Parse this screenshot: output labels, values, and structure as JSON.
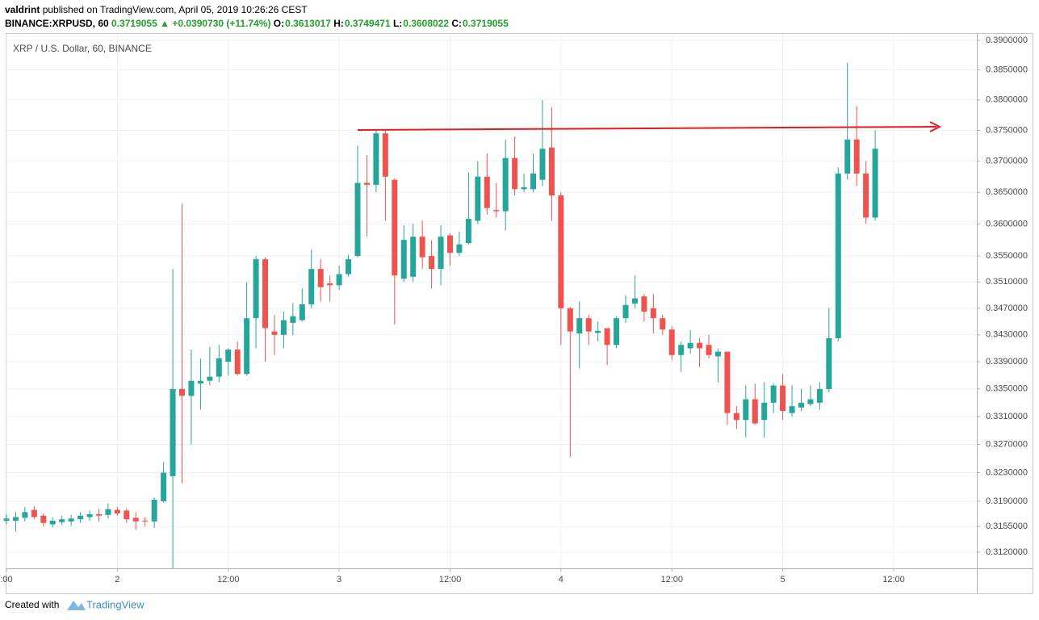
{
  "header": {
    "author": "valdrint",
    "published": "published on TradingView.com, April 05, 2019 10:26:26 CEST",
    "symbol": "BINANCE:XRPUSD, 60",
    "last": "0.3719055",
    "change": "▲ +0.0390730 (+11.74%)",
    "o_label": "O:",
    "o": "0.3613017",
    "h_label": "H:",
    "h": "0.3749471",
    "l_label": "L:",
    "l": "0.3608022",
    "c_label": "C:",
    "c": "0.3719055"
  },
  "footer": {
    "created": "Created with",
    "brand": "TradingView"
  },
  "chart_data": {
    "type": "candlestick",
    "title": "XRP / U.S. Dollar, 60, BINANCE",
    "log_scale": true,
    "grid": true,
    "up_color": "#26a69a",
    "down_color": "#ef5350",
    "x": [
      0,
      1,
      2,
      3,
      4,
      5,
      6,
      7,
      8,
      9,
      10,
      11,
      12,
      13,
      14,
      15,
      16,
      17,
      18,
      19,
      20,
      21,
      22,
      23,
      24,
      25,
      26,
      27,
      28,
      29,
      30,
      31,
      32,
      33,
      34,
      35,
      36,
      37,
      38,
      39,
      40,
      41,
      42,
      43,
      44,
      45,
      46,
      47,
      48,
      49,
      50,
      51,
      52,
      53,
      54,
      55,
      56,
      57,
      58,
      59,
      60,
      61,
      62,
      63,
      64,
      65,
      66,
      67,
      68,
      69,
      70,
      71,
      72,
      73,
      74,
      75,
      76,
      77,
      78,
      79,
      80,
      81,
      82,
      83,
      84,
      85,
      86,
      87,
      88,
      89,
      90,
      91,
      92,
      93,
      94
    ],
    "open": [
      0.3163,
      0.3163,
      0.3167,
      0.3178,
      0.317,
      0.3158,
      0.3161,
      0.3162,
      0.3165,
      0.3168,
      0.3172,
      0.3171,
      0.3178,
      0.3177,
      0.3167,
      0.3163,
      0.3162,
      0.319,
      0.3225,
      0.335,
      0.334,
      0.3358,
      0.3362,
      0.3368,
      0.339,
      0.3408,
      0.3372,
      0.3455,
      0.3545,
      0.3435,
      0.343,
      0.3448,
      0.3452,
      0.3476,
      0.353,
      0.3508,
      0.3505,
      0.3522,
      0.355,
      0.3665,
      0.3662,
      0.3745,
      0.367,
      0.3515,
      0.3518,
      0.358,
      0.355,
      0.353,
      0.3582,
      0.3555,
      0.357,
      0.3605,
      0.3675,
      0.3622,
      0.362,
      0.3705,
      0.3655,
      0.3655,
      0.367,
      0.3722,
      0.3645,
      0.347,
      0.3432,
      0.3455,
      0.3433,
      0.344,
      0.3415,
      0.3455,
      0.3477,
      0.3488,
      0.347,
      0.3455,
      0.3438,
      0.34,
      0.341,
      0.3418,
      0.3415,
      0.3398,
      0.3405,
      0.3315,
      0.3305,
      0.3335,
      0.3305,
      0.333,
      0.3355,
      0.3315,
      0.3323,
      0.3328,
      0.333,
      0.335,
      0.3425,
      0.368,
      0.3735,
      0.368,
      0.361
    ],
    "high": [
      0.3172,
      0.3175,
      0.3182,
      0.3183,
      0.3173,
      0.3168,
      0.317,
      0.3171,
      0.3175,
      0.3177,
      0.3179,
      0.3187,
      0.3182,
      0.318,
      0.3175,
      0.3168,
      0.3195,
      0.3245,
      0.353,
      0.3632,
      0.3408,
      0.3395,
      0.3412,
      0.3415,
      0.341,
      0.342,
      0.351,
      0.355,
      0.3548,
      0.346,
      0.3465,
      0.3478,
      0.35,
      0.356,
      0.3545,
      0.352,
      0.3535,
      0.3552,
      0.3725,
      0.371,
      0.375,
      0.375,
      0.3672,
      0.3598,
      0.36,
      0.3605,
      0.3575,
      0.3598,
      0.3585,
      0.3588,
      0.3682,
      0.37,
      0.3712,
      0.3665,
      0.3735,
      0.374,
      0.368,
      0.3712,
      0.38,
      0.3788,
      0.365,
      0.3472,
      0.348,
      0.346,
      0.345,
      0.344,
      0.3458,
      0.349,
      0.352,
      0.3492,
      0.3492,
      0.346,
      0.3443,
      0.342,
      0.3437,
      0.3425,
      0.343,
      0.341,
      0.3405,
      0.3325,
      0.3355,
      0.3358,
      0.336,
      0.3358,
      0.3372,
      0.3355,
      0.335,
      0.3355,
      0.336,
      0.347,
      0.369,
      0.3862,
      0.379,
      0.37,
      0.375
    ],
    "low": [
      0.3158,
      0.3148,
      0.3162,
      0.3165,
      0.3155,
      0.3154,
      0.3157,
      0.3156,
      0.316,
      0.3163,
      0.3162,
      0.3166,
      0.317,
      0.316,
      0.315,
      0.3155,
      0.3153,
      0.3188,
      0.3098,
      0.3215,
      0.327,
      0.332,
      0.3355,
      0.336,
      0.337,
      0.337,
      0.337,
      0.341,
      0.339,
      0.34,
      0.341,
      0.343,
      0.345,
      0.347,
      0.348,
      0.348,
      0.3498,
      0.3518,
      0.3548,
      0.358,
      0.365,
      0.3605,
      0.3445,
      0.351,
      0.351,
      0.353,
      0.35,
      0.3505,
      0.3535,
      0.355,
      0.3568,
      0.36,
      0.3615,
      0.361,
      0.359,
      0.3645,
      0.365,
      0.365,
      0.366,
      0.3605,
      0.3415,
      0.3252,
      0.338,
      0.3415,
      0.342,
      0.3385,
      0.341,
      0.3448,
      0.347,
      0.345,
      0.3432,
      0.343,
      0.3392,
      0.3375,
      0.3402,
      0.3382,
      0.3395,
      0.336,
      0.3298,
      0.3292,
      0.328,
      0.3298,
      0.328,
      0.3315,
      0.3305,
      0.331,
      0.3318,
      0.3325,
      0.332,
      0.3345,
      0.342,
      0.367,
      0.366,
      0.36,
      0.3605
    ],
    "close": [
      0.3166,
      0.3168,
      0.3175,
      0.3168,
      0.316,
      0.3163,
      0.3165,
      0.3166,
      0.317,
      0.3172,
      0.317,
      0.3179,
      0.3173,
      0.3165,
      0.3162,
      0.3162,
      0.3192,
      0.323,
      0.335,
      0.334,
      0.3362,
      0.3362,
      0.3368,
      0.3395,
      0.3408,
      0.3372,
      0.3455,
      0.3545,
      0.344,
      0.343,
      0.3452,
      0.3458,
      0.3476,
      0.353,
      0.3502,
      0.3505,
      0.3522,
      0.3545,
      0.3665,
      0.3662,
      0.3745,
      0.3675,
      0.352,
      0.3575,
      0.358,
      0.3548,
      0.353,
      0.358,
      0.3555,
      0.3568,
      0.3608,
      0.3675,
      0.3625,
      0.362,
      0.3705,
      0.3655,
      0.3658,
      0.368,
      0.372,
      0.3645,
      0.347,
      0.3435,
      0.3455,
      0.3435,
      0.3436,
      0.3415,
      0.3455,
      0.3475,
      0.3485,
      0.3465,
      0.3455,
      0.3438,
      0.34,
      0.3415,
      0.3418,
      0.341,
      0.34,
      0.3405,
      0.3315,
      0.3305,
      0.3335,
      0.33,
      0.333,
      0.3355,
      0.3318,
      0.3325,
      0.333,
      0.3335,
      0.335,
      0.3425,
      0.368,
      0.3735,
      0.368,
      0.361,
      0.372
    ],
    "xlim": [
      0,
      105
    ],
    "xticks": [
      {
        "value": 0,
        "label": ":00"
      },
      {
        "value": 12,
        "label": "2"
      },
      {
        "value": 24,
        "label": "12:00"
      },
      {
        "value": 36,
        "label": "3"
      },
      {
        "value": 48,
        "label": "12:00"
      },
      {
        "value": 60,
        "label": "4"
      },
      {
        "value": 72,
        "label": "12:00"
      },
      {
        "value": 84,
        "label": "5"
      },
      {
        "value": 96,
        "label": "12:00"
      }
    ],
    "ylim": [
      0.3098,
      0.3911
    ],
    "yticks": [
      {
        "value": 0.39,
        "label": "0.3900000"
      },
      {
        "value": 0.385,
        "label": "0.3850000"
      },
      {
        "value": 0.38,
        "label": "0.3800000"
      },
      {
        "value": 0.375,
        "label": "0.3750000"
      },
      {
        "value": 0.37,
        "label": "0.3700000"
      },
      {
        "value": 0.365,
        "label": "0.3650000"
      },
      {
        "value": 0.36,
        "label": "0.3600000"
      },
      {
        "value": 0.355,
        "label": "0.3550000"
      },
      {
        "value": 0.351,
        "label": "0.3510000"
      },
      {
        "value": 0.347,
        "label": "0.3470000"
      },
      {
        "value": 0.343,
        "label": "0.3430000"
      },
      {
        "value": 0.339,
        "label": "0.3390000"
      },
      {
        "value": 0.335,
        "label": "0.3350000"
      },
      {
        "value": 0.331,
        "label": "0.3310000"
      },
      {
        "value": 0.327,
        "label": "0.3270000"
      },
      {
        "value": 0.323,
        "label": "0.3230000"
      },
      {
        "value": 0.319,
        "label": "0.3190000"
      },
      {
        "value": 0.3155,
        "label": "0.3155000"
      },
      {
        "value": 0.312,
        "label": "0.3120000"
      }
    ]
  }
}
